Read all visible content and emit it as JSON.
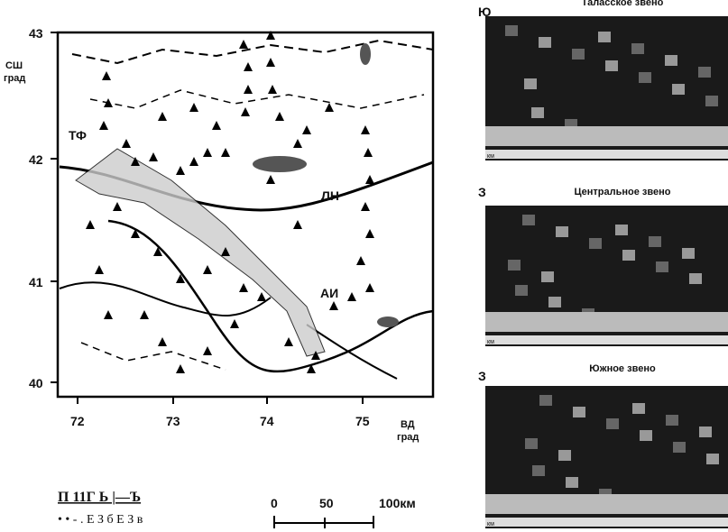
{
  "map": {
    "lat_labels": [
      "43",
      "42",
      "41",
      "40"
    ],
    "lat_unit": [
      "СШ",
      "град"
    ],
    "lon_labels": [
      "72",
      "73",
      "74",
      "75"
    ],
    "lon_unit": [
      "ВД",
      "град"
    ],
    "places": [
      "ТФ",
      "ЛН",
      "АИ"
    ],
    "scale": [
      "0",
      "50",
      "100км"
    ],
    "legend": [
      "П 11Г Ь |—Ъ",
      "• • - . Е З б Е З в"
    ]
  },
  "sections": [
    {
      "side": "Ю",
      "title": "Таласское звено",
      "unit": "км"
    },
    {
      "side": "З",
      "title": "Центральное звено",
      "unit": "км"
    },
    {
      "side": "З",
      "title": "Южное звено",
      "unit": "км"
    }
  ]
}
